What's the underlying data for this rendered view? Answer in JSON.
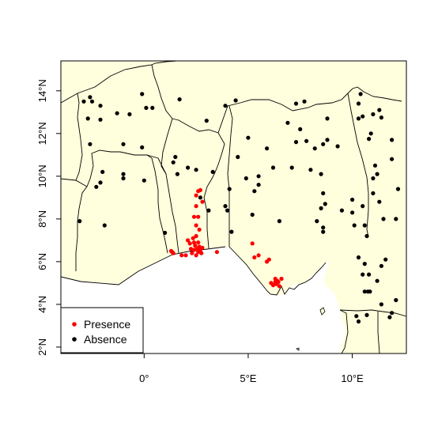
{
  "chart_data": {
    "type": "scatter",
    "xlim": [
      -4.0,
      12.6
    ],
    "ylim": [
      1.7,
      15.4
    ],
    "x_ticks": [
      {
        "value": 0,
        "label": "0°"
      },
      {
        "value": 5,
        "label": "5°E"
      },
      {
        "value": 10,
        "label": "10°E"
      }
    ],
    "y_ticks": [
      {
        "value": 2,
        "label": "2°N"
      },
      {
        "value": 4,
        "label": "4°N"
      },
      {
        "value": 6,
        "label": "6°N"
      },
      {
        "value": 8,
        "label": "8°N"
      },
      {
        "value": 10,
        "label": "10°N"
      },
      {
        "value": 12,
        "label": "12°N"
      },
      {
        "value": 14,
        "label": "14°N"
      }
    ],
    "land_color": "#ffffdd",
    "sea_color": "#ffffff",
    "grid": false,
    "legend": {
      "position": "bottom-left",
      "entries": [
        "Presence",
        "Absence"
      ]
    },
    "series": [
      {
        "name": "Presence",
        "color": "#ff0000",
        "points": [
          [
            1.3,
            6.5
          ],
          [
            1.35,
            6.45
          ],
          [
            1.4,
            6.4
          ],
          [
            1.8,
            6.3
          ],
          [
            2.0,
            6.3
          ],
          [
            2.1,
            7.0
          ],
          [
            2.2,
            6.85
          ],
          [
            2.25,
            6.6
          ],
          [
            2.3,
            6.4
          ],
          [
            2.35,
            7.1
          ],
          [
            2.4,
            6.9
          ],
          [
            2.4,
            6.55
          ],
          [
            2.45,
            6.75
          ],
          [
            2.5,
            7.2
          ],
          [
            2.55,
            6.6
          ],
          [
            2.6,
            6.45
          ],
          [
            2.6,
            6.9
          ],
          [
            2.65,
            6.7
          ],
          [
            2.7,
            6.55
          ],
          [
            2.75,
            6.4
          ],
          [
            2.8,
            6.65
          ],
          [
            2.4,
            8.1
          ],
          [
            2.6,
            8.1
          ],
          [
            2.5,
            8.6
          ],
          [
            2.8,
            8.8
          ],
          [
            2.5,
            9.1
          ],
          [
            2.7,
            9.35
          ],
          [
            2.6,
            9.3
          ],
          [
            2.5,
            7.7
          ],
          [
            2.65,
            7.5
          ],
          [
            2.5,
            6.3
          ],
          [
            3.5,
            6.45
          ],
          [
            5.2,
            6.85
          ],
          [
            5.3,
            6.2
          ],
          [
            5.5,
            6.3
          ],
          [
            5.9,
            6.0
          ],
          [
            6.0,
            6.1
          ],
          [
            6.1,
            5.0
          ],
          [
            6.3,
            5.05
          ],
          [
            6.3,
            5.2
          ],
          [
            6.35,
            4.95
          ],
          [
            6.4,
            5.1
          ],
          [
            6.5,
            4.85
          ],
          [
            6.45,
            5.05
          ],
          [
            6.6,
            5.2
          ],
          [
            6.2,
            4.9
          ]
        ]
      },
      {
        "name": "Absence",
        "color": "#000000",
        "points": [
          [
            -2.9,
            13.5
          ],
          [
            -2.6,
            13.7
          ],
          [
            -2.5,
            13.5
          ],
          [
            -2.1,
            13.3
          ],
          [
            -2.7,
            12.7
          ],
          [
            -2.1,
            12.65
          ],
          [
            -1.3,
            12.95
          ],
          [
            -0.7,
            12.9
          ],
          [
            -0.1,
            13.85
          ],
          [
            0.1,
            13.2
          ],
          [
            0.4,
            13.2
          ],
          [
            1.7,
            13.6
          ],
          [
            -2.6,
            11.5
          ],
          [
            -1.0,
            11.5
          ],
          [
            -0.1,
            11.35
          ],
          [
            1.5,
            10.9
          ],
          [
            1.4,
            10.65
          ],
          [
            -2.0,
            10.2
          ],
          [
            -1.0,
            10.1
          ],
          [
            -1.0,
            9.9
          ],
          [
            -2.3,
            9.5
          ],
          [
            -2.1,
            9.7
          ],
          [
            0.0,
            9.8
          ],
          [
            -1.9,
            7.7
          ],
          [
            -3.1,
            7.9
          ],
          [
            1.0,
            7.35
          ],
          [
            1.6,
            10.1
          ],
          [
            2.1,
            10.4
          ],
          [
            2.5,
            10.3
          ],
          [
            2.7,
            9.0
          ],
          [
            3.3,
            10.2
          ],
          [
            3.1,
            8.4
          ],
          [
            3.0,
            12.6
          ],
          [
            3.9,
            13.3
          ],
          [
            4.4,
            13.55
          ],
          [
            3.9,
            8.6
          ],
          [
            4.1,
            9.4
          ],
          [
            4.0,
            8.4
          ],
          [
            4.2,
            7.4
          ],
          [
            4.5,
            10.9
          ],
          [
            4.9,
            9.9
          ],
          [
            5.0,
            11.8
          ],
          [
            5.2,
            8.2
          ],
          [
            5.3,
            9.3
          ],
          [
            5.5,
            9.6
          ],
          [
            5.5,
            10.0
          ],
          [
            5.9,
            11.3
          ],
          [
            6.2,
            10.4
          ],
          [
            6.5,
            7.9
          ],
          [
            6.9,
            12.5
          ],
          [
            7.1,
            10.4
          ],
          [
            7.3,
            11.6
          ],
          [
            7.3,
            13.4
          ],
          [
            7.7,
            13.5
          ],
          [
            7.5,
            12.2
          ],
          [
            7.8,
            11.65
          ],
          [
            8.0,
            10.3
          ],
          [
            8.2,
            11.3
          ],
          [
            8.3,
            7.9
          ],
          [
            8.5,
            8.5
          ],
          [
            8.6,
            7.6
          ],
          [
            8.6,
            9.2
          ],
          [
            8.7,
            8.7
          ],
          [
            8.5,
            10.1
          ],
          [
            8.6,
            11.5
          ],
          [
            8.8,
            12.7
          ],
          [
            8.8,
            11.7
          ],
          [
            8.6,
            7.4
          ],
          [
            9.3,
            11.4
          ],
          [
            9.5,
            8.4
          ],
          [
            10.0,
            8.9
          ],
          [
            10.0,
            8.3
          ],
          [
            10.1,
            7.7
          ],
          [
            10.3,
            12.7
          ],
          [
            10.3,
            13.4
          ],
          [
            10.4,
            13.85
          ],
          [
            10.5,
            12.8
          ],
          [
            10.5,
            8.6
          ],
          [
            10.6,
            7.7
          ],
          [
            10.7,
            7.2
          ],
          [
            10.8,
            11.75
          ],
          [
            10.9,
            12.0
          ],
          [
            11.0,
            9.9
          ],
          [
            11.1,
            10.5
          ],
          [
            11.2,
            10.1
          ],
          [
            11.3,
            8.8
          ],
          [
            11.4,
            12.75
          ],
          [
            11.5,
            8.0
          ],
          [
            11.0,
            12.9
          ],
          [
            11.0,
            9.2
          ],
          [
            11.9,
            11.7
          ],
          [
            11.9,
            10.8
          ],
          [
            12.1,
            8.0
          ],
          [
            12.2,
            9.4
          ],
          [
            11.3,
            13.1
          ],
          [
            10.3,
            6.2
          ],
          [
            10.5,
            5.4
          ],
          [
            10.6,
            4.6
          ],
          [
            10.75,
            4.6
          ],
          [
            10.85,
            4.6
          ],
          [
            10.6,
            5.9
          ],
          [
            10.7,
            3.5
          ],
          [
            10.2,
            3.45
          ],
          [
            10.3,
            3.2
          ],
          [
            10.8,
            5.4
          ],
          [
            11.2,
            5.1
          ],
          [
            11.4,
            5.8
          ],
          [
            11.6,
            6.1
          ],
          [
            11.9,
            3.6
          ],
          [
            12.1,
            4.2
          ],
          [
            11.4,
            4.0
          ],
          [
            11.8,
            3.4
          ]
        ]
      }
    ]
  }
}
